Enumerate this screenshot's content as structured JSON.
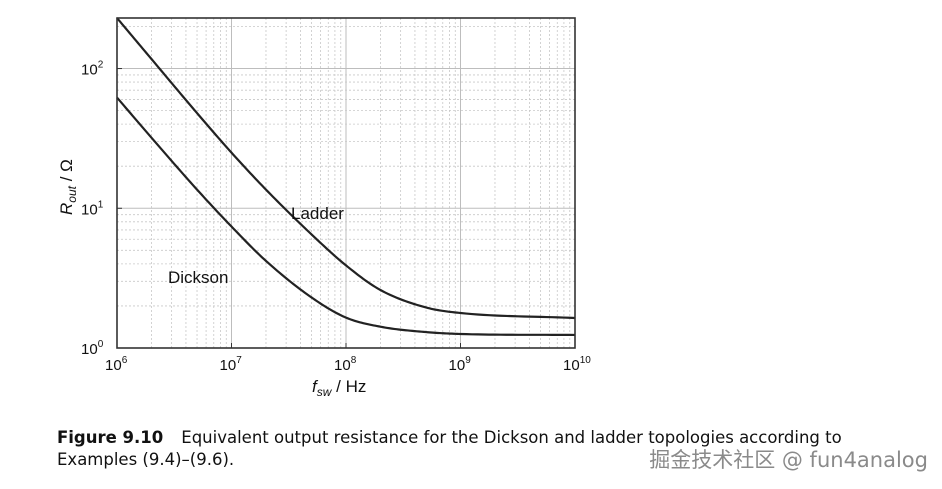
{
  "chart_data": {
    "type": "line",
    "xscale": "log",
    "yscale": "log",
    "xlim": [
      1000000,
      10000000000
    ],
    "ylim": [
      1,
      230
    ],
    "grid": true,
    "xlabel": {
      "main": "f",
      "sub": "sw",
      "rest": " / Hz"
    },
    "ylabel": {
      "main": "R",
      "sub": "out",
      "rest": " / Ω"
    },
    "x_ticks": [
      {
        "value": 1000000,
        "base": "10",
        "exp": "6"
      },
      {
        "value": 10000000,
        "base": "10",
        "exp": "7"
      },
      {
        "value": 100000000,
        "base": "10",
        "exp": "8"
      },
      {
        "value": 1000000000,
        "base": "10",
        "exp": "9"
      },
      {
        "value": 10000000000,
        "base": "10",
        "exp": "10"
      }
    ],
    "y_ticks": [
      {
        "value": 1,
        "base": "10",
        "exp": "0"
      },
      {
        "value": 10,
        "base": "10",
        "exp": "1"
      },
      {
        "value": 100,
        "base": "10",
        "exp": "2"
      }
    ],
    "series": [
      {
        "name": "Ladder",
        "x": [
          1000000,
          2000000,
          5000000,
          10000000,
          20000000,
          50000000,
          100000000,
          200000000,
          500000000,
          1000000000,
          10000000000
        ],
        "values": [
          230,
          117,
          48,
          25,
          13.6,
          6.5,
          3.9,
          2.6,
          1.95,
          1.78,
          1.64
        ]
      },
      {
        "name": "Dickson",
        "x": [
          1000000,
          2000000,
          5000000,
          10000000,
          20000000,
          50000000,
          100000000,
          200000000,
          500000000,
          1000000000,
          10000000000
        ],
        "values": [
          62,
          32,
          13.6,
          7.4,
          4.2,
          2.3,
          1.65,
          1.42,
          1.3,
          1.26,
          1.24
        ]
      }
    ]
  },
  "caption": {
    "label": "Figure 9.10",
    "text": "Equivalent output resistance for the Dickson and ladder topologies according to Examples (9.4)–(9.6)."
  },
  "watermark": "掘金技术社区 @ fun4analog"
}
